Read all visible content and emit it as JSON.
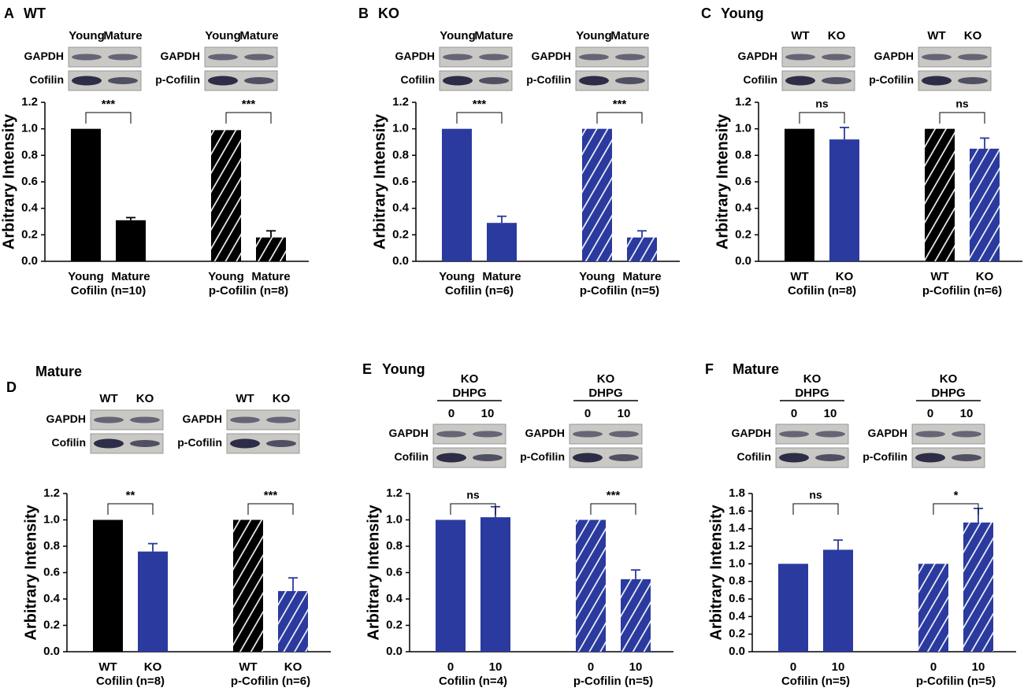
{
  "chart_data": [
    {
      "type": "bar",
      "letter": "A",
      "title": "WT",
      "y_label": "Arbitrary Intensity",
      "ylim": [
        0,
        1.2
      ],
      "yticks": [
        {
          "value": 0,
          "label": "0.0"
        },
        0.2,
        0.4,
        0.6,
        0.8,
        {
          "value": 1,
          "label": "1.0"
        },
        1.2
      ],
      "groups": [
        {
          "label": "Cofilin (n=10)",
          "categories": [
            "Young",
            "Mature"
          ],
          "values": [
            1.0,
            0.31
          ],
          "errors": [
            0,
            0.02
          ],
          "colors": [
            "#000000",
            "#000000"
          ],
          "hatch": false,
          "significance": "***",
          "blot": {
            "columns": [
              "Young",
              "Mature"
            ],
            "rows": [
              "GAPDH",
              "Cofilin"
            ]
          }
        },
        {
          "label": "p-Cofilin (n=8)",
          "categories": [
            "Young",
            "Mature"
          ],
          "values": [
            0.99,
            0.18
          ],
          "errors": [
            0,
            0.05
          ],
          "colors": [
            "#000000",
            "#000000"
          ],
          "hatch": true,
          "significance": "***",
          "blot": {
            "columns": [
              "Young",
              "Mature"
            ],
            "rows": [
              "GAPDH",
              "p-Cofilin"
            ]
          }
        }
      ]
    },
    {
      "type": "bar",
      "letter": "B",
      "title": "KO",
      "y_label": "Arbitrary Intensity",
      "ylim": [
        0,
        1.2
      ],
      "yticks": [
        {
          "value": 0,
          "label": "0.0"
        },
        0.2,
        0.4,
        0.6,
        0.8,
        {
          "value": 1,
          "label": "1.0"
        },
        1.2
      ],
      "groups": [
        {
          "label": "Cofilin (n=6)",
          "categories": [
            "Young",
            "Mature"
          ],
          "values": [
            1.0,
            0.29
          ],
          "errors": [
            0,
            0.05
          ],
          "colors": [
            "#2b3a9e",
            "#2b3a9e"
          ],
          "hatch": false,
          "significance": "***",
          "blot": {
            "columns": [
              "Young",
              "Mature"
            ],
            "rows": [
              "GAPDH",
              "Cofilin"
            ]
          }
        },
        {
          "label": "p-Cofilin (n=5)",
          "categories": [
            "Young",
            "Mature"
          ],
          "values": [
            1.0,
            0.18
          ],
          "errors": [
            0,
            0.05
          ],
          "colors": [
            "#2b3a9e",
            "#2b3a9e"
          ],
          "hatch": true,
          "significance": "***",
          "blot": {
            "columns": [
              "Young",
              "Mature"
            ],
            "rows": [
              "GAPDH",
              "p-Cofilin"
            ]
          }
        }
      ]
    },
    {
      "type": "bar",
      "letter": "C",
      "title": "Young",
      "y_label": "Arbitrary Intensity",
      "ylim": [
        0,
        1.2
      ],
      "yticks": [
        {
          "value": 0,
          "label": "0.0"
        },
        0.2,
        0.4,
        0.6,
        0.8,
        {
          "value": 1,
          "label": "1.0"
        },
        1.2
      ],
      "groups": [
        {
          "label": "Cofilin (n=8)",
          "categories": [
            "WT",
            "KO"
          ],
          "values": [
            1.0,
            0.92
          ],
          "errors": [
            0,
            0.09
          ],
          "colors": [
            "#000000",
            "#2b3a9e"
          ],
          "hatch": false,
          "significance": "ns",
          "blot": {
            "columns": [
              "WT",
              "KO"
            ],
            "rows": [
              "GAPDH",
              "Cofilin"
            ]
          }
        },
        {
          "label": "p-Cofilin (n=6)",
          "categories": [
            "WT",
            "KO"
          ],
          "values": [
            1.0,
            0.85
          ],
          "errors": [
            0,
            0.08
          ],
          "colors": [
            "#000000",
            "#2b3a9e"
          ],
          "hatch": true,
          "significance": "ns",
          "blot": {
            "columns": [
              "WT",
              "KO"
            ],
            "rows": [
              "GAPDH",
              "p-Cofilin"
            ]
          }
        }
      ]
    },
    {
      "type": "bar",
      "letter": "D",
      "title": "Mature",
      "y_label": "Arbitrary Intensity",
      "ylim": [
        0,
        1.2
      ],
      "yticks": [
        {
          "value": 0,
          "label": "0.0"
        },
        0.2,
        0.4,
        0.6,
        0.8,
        {
          "value": 1,
          "label": "1.0"
        },
        1.2
      ],
      "groups": [
        {
          "label": "Cofilin (n=8)",
          "categories": [
            "WT",
            "KO"
          ],
          "values": [
            1.0,
            0.76
          ],
          "errors": [
            0,
            0.06
          ],
          "colors": [
            "#000000",
            "#2b3a9e"
          ],
          "hatch": false,
          "significance": "**",
          "blot": {
            "columns": [
              "WT",
              "KO"
            ],
            "rows": [
              "GAPDH",
              "Cofilin"
            ]
          }
        },
        {
          "label": "p-Cofilin (n=6)",
          "categories": [
            "WT",
            "KO"
          ],
          "values": [
            1.0,
            0.46
          ],
          "errors": [
            0,
            0.1
          ],
          "colors": [
            "#000000",
            "#2b3a9e"
          ],
          "hatch": true,
          "significance": "***",
          "blot": {
            "columns": [
              "WT",
              "KO"
            ],
            "rows": [
              "GAPDH",
              "p-Cofilin"
            ]
          }
        }
      ]
    },
    {
      "type": "bar",
      "letter": "E",
      "title": "Young",
      "y_label": "Arbitrary Intensity",
      "ylim": [
        0,
        1.2
      ],
      "yticks": [
        {
          "value": 0,
          "label": "0.0"
        },
        0.2,
        0.4,
        0.6,
        0.8,
        {
          "value": 1,
          "label": "1.0"
        },
        1.2
      ],
      "groups": [
        {
          "label": "Cofilin (n=4)",
          "categories": [
            "0",
            "10"
          ],
          "values": [
            1.0,
            1.02
          ],
          "errors": [
            0,
            0.08
          ],
          "colors": [
            "#2b3a9e",
            "#2b3a9e"
          ],
          "hatch": false,
          "significance": "ns",
          "blot": {
            "header": [
              "KO",
              "DHPG"
            ],
            "columns": [
              "0",
              "10"
            ],
            "rows": [
              "GAPDH",
              "Cofilin"
            ]
          }
        },
        {
          "label": "p-Cofilin (n=5)",
          "categories": [
            "0",
            "10"
          ],
          "values": [
            1.0,
            0.55
          ],
          "errors": [
            0,
            0.07
          ],
          "colors": [
            "#2b3a9e",
            "#2b3a9e"
          ],
          "hatch": true,
          "significance": "***",
          "blot": {
            "header": [
              "KO",
              "DHPG"
            ],
            "columns": [
              "0",
              "10"
            ],
            "rows": [
              "GAPDH",
              "p-Cofilin"
            ]
          }
        }
      ]
    },
    {
      "type": "bar",
      "letter": "F",
      "title": "Mature",
      "y_label": "Arbitrary Intensity",
      "ylim": [
        0,
        1.8
      ],
      "yticks": [
        {
          "value": 0,
          "label": "0.0"
        },
        0.2,
        0.4,
        0.6,
        0.8,
        {
          "value": 1,
          "label": "1.0"
        },
        1.2,
        1.4,
        1.6,
        1.8
      ],
      "groups": [
        {
          "label": "Cofilin (n=5)",
          "categories": [
            "0",
            "10"
          ],
          "values": [
            1.0,
            1.16
          ],
          "errors": [
            0,
            0.11
          ],
          "colors": [
            "#2b3a9e",
            "#2b3a9e"
          ],
          "hatch": false,
          "significance": "ns",
          "blot": {
            "header": [
              "KO",
              "DHPG"
            ],
            "columns": [
              "0",
              "10"
            ],
            "rows": [
              "GAPDH",
              "Cofilin"
            ]
          }
        },
        {
          "label": "p-Cofilin (n=5)",
          "categories": [
            "0",
            "10"
          ],
          "values": [
            1.0,
            1.47
          ],
          "errors": [
            0,
            0.16
          ],
          "colors": [
            "#2b3a9e",
            "#2b3a9e"
          ],
          "hatch": true,
          "significance": "*",
          "blot": {
            "header": [
              "KO",
              "DHPG"
            ],
            "columns": [
              "0",
              "10"
            ],
            "rows": [
              "GAPDH",
              "p-Cofilin"
            ]
          }
        }
      ]
    }
  ]
}
